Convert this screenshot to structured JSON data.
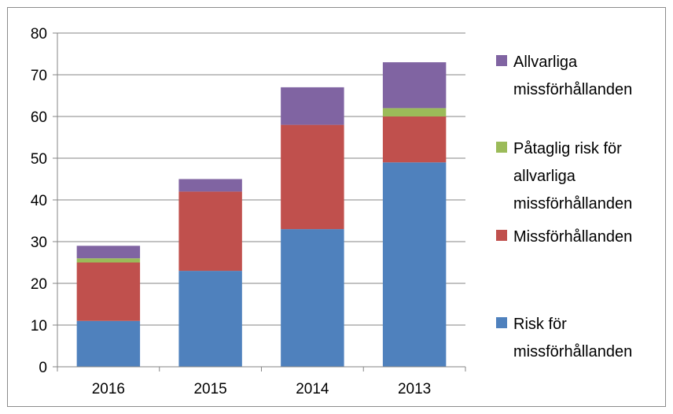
{
  "chart_data": {
    "type": "bar",
    "stacked": true,
    "categories": [
      "2016",
      "2015",
      "2014",
      "2013"
    ],
    "series": [
      {
        "name": "Risk för missförhållanden",
        "legend_lines": [
          "Risk för",
          "missförhållanden"
        ],
        "color": "#4f81bd",
        "values": [
          11,
          23,
          33,
          49
        ]
      },
      {
        "name": "Missförhållanden",
        "legend_lines": [
          "Missförhållanden"
        ],
        "color": "#c0504d",
        "values": [
          14,
          19,
          25,
          11
        ]
      },
      {
        "name": "Påtaglig risk för allvarliga missförhållanden",
        "legend_lines": [
          "Påtaglig risk för",
          "allvarliga",
          "missförhållanden"
        ],
        "color": "#9bbb59",
        "values": [
          1,
          0,
          0,
          2
        ]
      },
      {
        "name": "Allvarliga missförhållanden",
        "legend_lines": [
          "Allvarliga",
          "missförhållanden"
        ],
        "color": "#8064a2",
        "values": [
          3,
          3,
          9,
          11
        ]
      }
    ],
    "ylim": [
      0,
      80
    ],
    "yticks": [
      0,
      10,
      20,
      30,
      40,
      50,
      60,
      70,
      80
    ],
    "grid": true,
    "legend": "right",
    "title": "",
    "xlabel": "",
    "ylabel": ""
  }
}
